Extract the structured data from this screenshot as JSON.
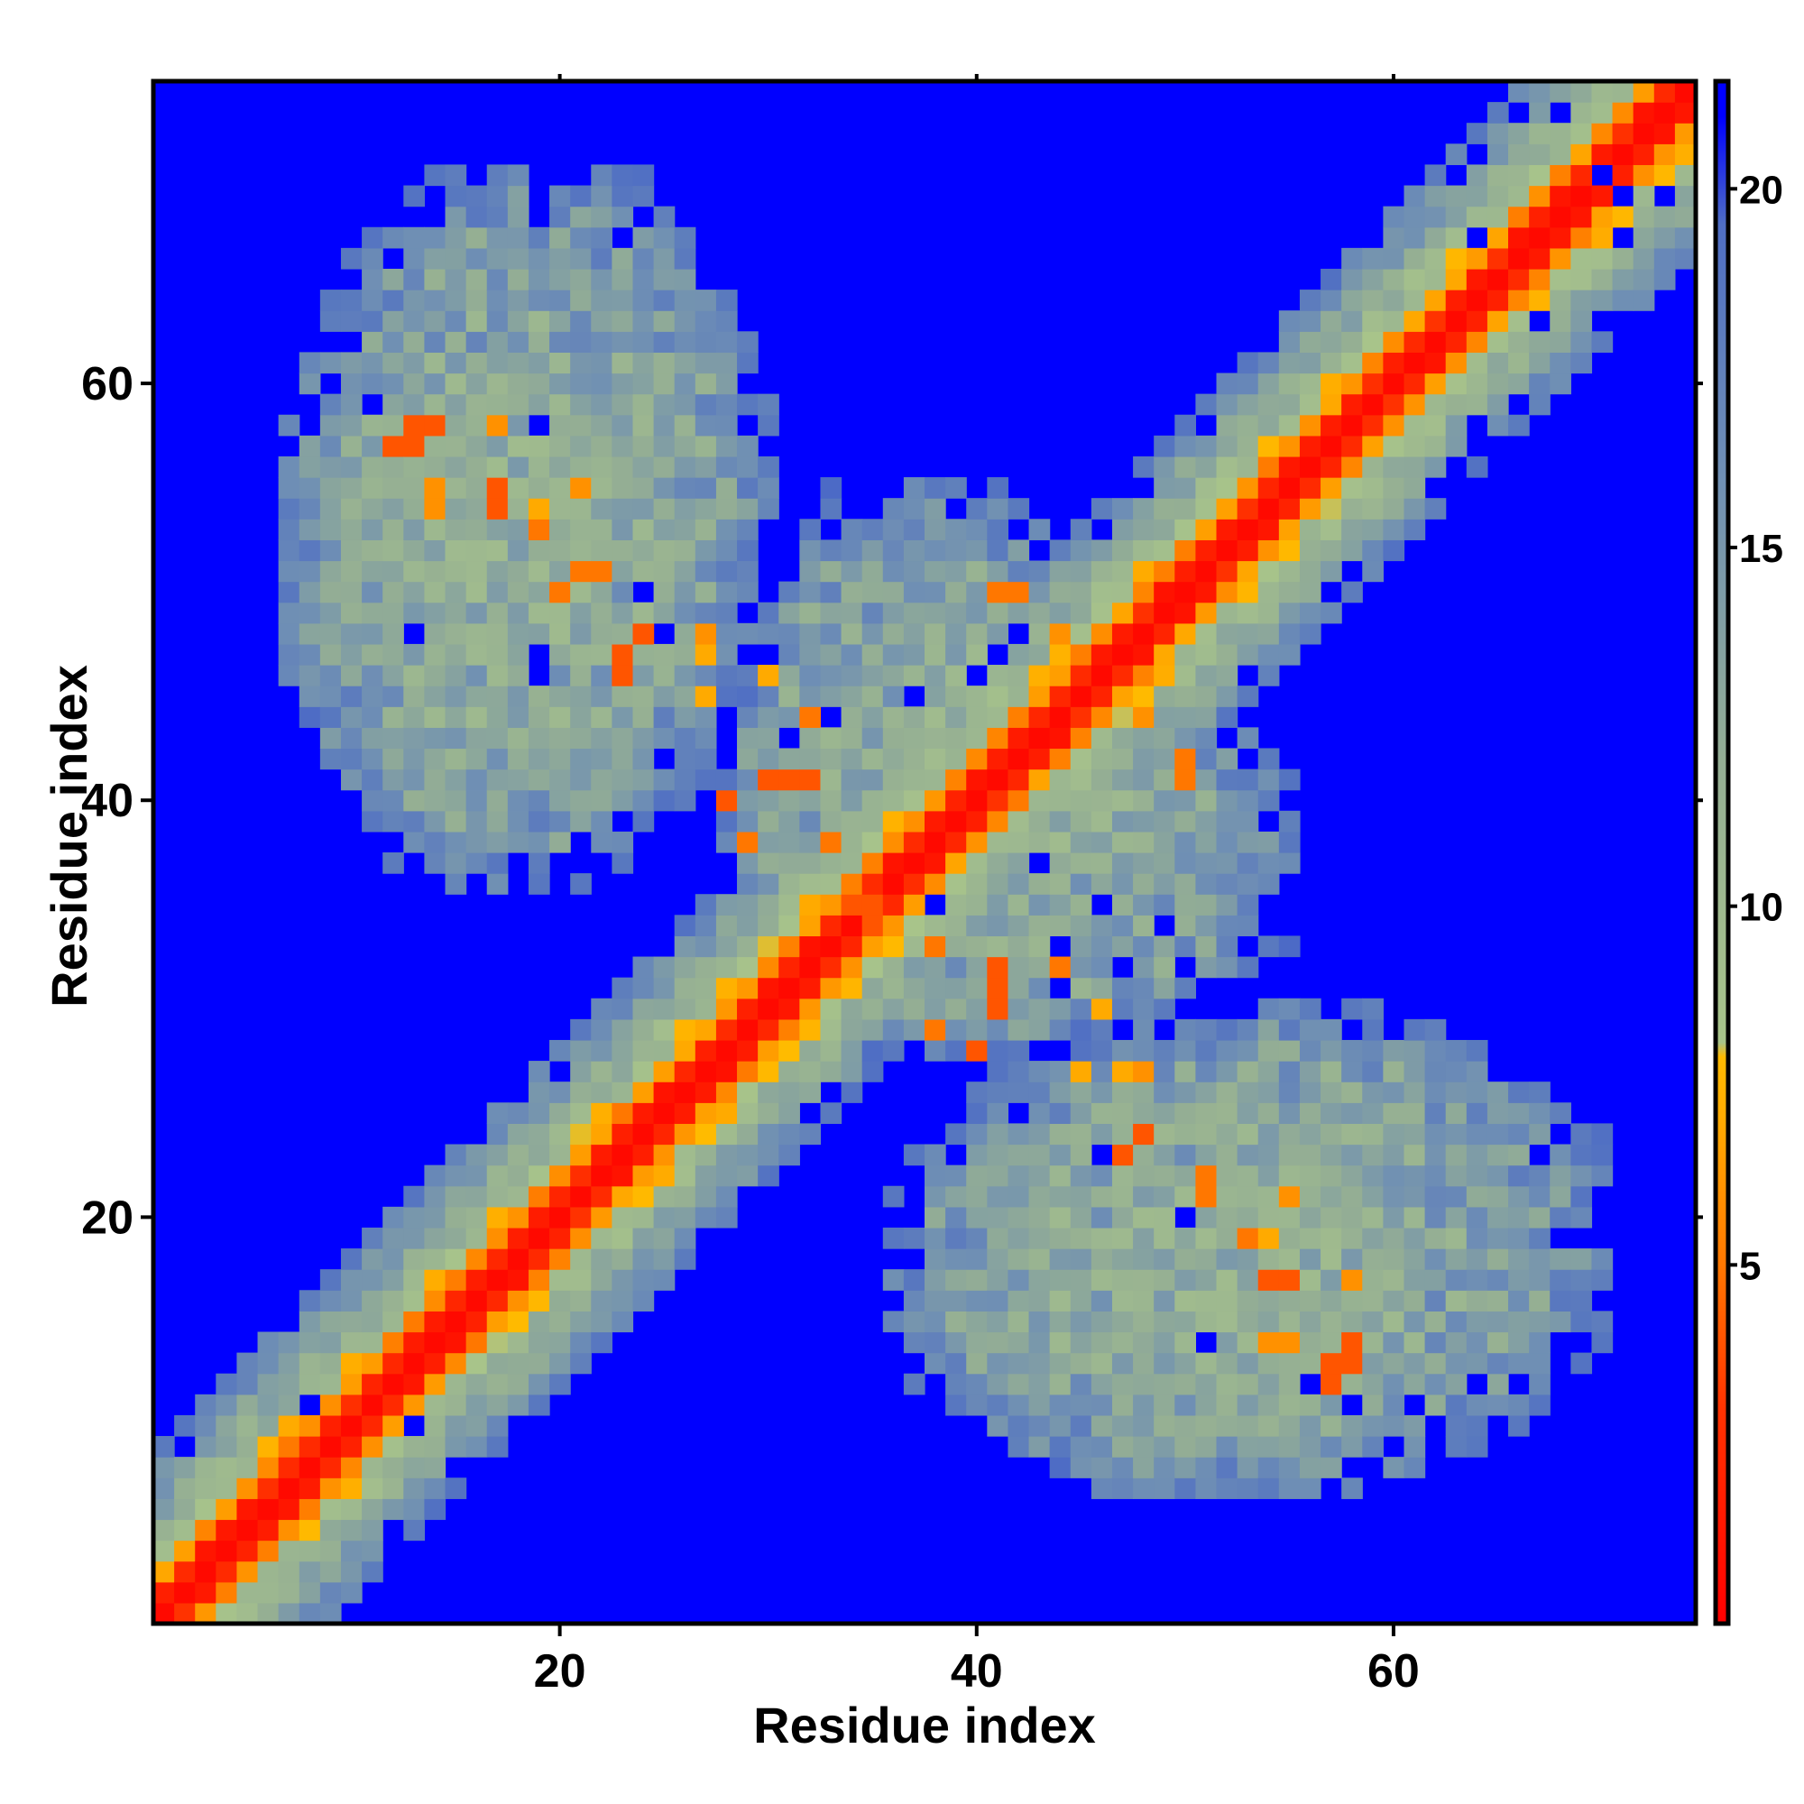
{
  "chart_data": {
    "type": "heatmap",
    "title": "",
    "xlabel": "Residue index",
    "ylabel": "Residue index",
    "n_residues": 74,
    "xlim": [
      0.5,
      74.5
    ],
    "ylim": [
      0.5,
      74.5
    ],
    "x_ticks": [
      20,
      40,
      60
    ],
    "y_ticks": [
      20,
      40,
      60
    ],
    "colorbar": {
      "range": [
        0,
        21.5
      ],
      "ticks": [
        5,
        10,
        15,
        20
      ],
      "stops": [
        {
          "value": 0,
          "color": "#ff0000"
        },
        {
          "value": 3,
          "color": "#ff3300"
        },
        {
          "value": 5,
          "color": "#ff7700"
        },
        {
          "value": 7,
          "color": "#ffaa00"
        },
        {
          "value": 7.9,
          "color": "#ffbb00"
        },
        {
          "value": 8.1,
          "color": "#a8c48a"
        },
        {
          "value": 12,
          "color": "#94ae94"
        },
        {
          "value": 16,
          "color": "#6f8fb4"
        },
        {
          "value": 19.5,
          "color": "#4f6ec4"
        },
        {
          "value": 21,
          "color": "#0000ff"
        }
      ]
    },
    "background_color": "#0000ff",
    "structure": {
      "diagonal_width_residues": 1,
      "near_diagonal_bands": [
        {
          "offset": 1,
          "value": 2
        },
        {
          "offset": 2,
          "value": 6
        },
        {
          "offset": 3,
          "value": 9
        },
        {
          "offset": 4,
          "value": 11
        },
        {
          "offset": 5,
          "value": 12.5
        },
        {
          "offset": 6,
          "value": 14
        },
        {
          "offset": 7,
          "value": 16
        },
        {
          "offset": 8,
          "value": 18
        }
      ],
      "antidiagonal_center": 29,
      "contact_lobes": [
        {
          "i_range": [
            7,
            28
          ],
          "j_range": [
            36,
            63
          ],
          "typical_value": 13
        },
        {
          "i_range": [
            28,
            48
          ],
          "j_range": [
            28,
            55
          ],
          "typical_value": 13
        },
        {
          "i_range": [
            38,
            70
          ],
          "j_range": [
            7,
            30
          ],
          "typical_value": 13
        }
      ],
      "contact_hotspots": [
        {
          "i": 13,
          "j": 58,
          "value": 4
        },
        {
          "i": 14,
          "j": 58,
          "value": 4
        },
        {
          "i": 17,
          "j": 58,
          "value": 6
        },
        {
          "i": 14,
          "j": 55,
          "value": 6
        },
        {
          "i": 17,
          "j": 55,
          "value": 5
        },
        {
          "i": 19,
          "j": 54,
          "value": 7
        },
        {
          "i": 21,
          "j": 55,
          "value": 6
        },
        {
          "i": 21,
          "j": 51,
          "value": 5
        },
        {
          "i": 22,
          "j": 51,
          "value": 5
        },
        {
          "i": 24,
          "j": 48,
          "value": 4
        },
        {
          "i": 27,
          "j": 48,
          "value": 6
        },
        {
          "i": 30,
          "j": 46,
          "value": 7
        },
        {
          "i": 32,
          "j": 44,
          "value": 5
        },
        {
          "i": 31,
          "j": 41,
          "value": 4
        },
        {
          "i": 32,
          "j": 41,
          "value": 4
        },
        {
          "i": 33,
          "j": 38,
          "value": 5
        },
        {
          "i": 34,
          "j": 35,
          "value": 4
        },
        {
          "i": 35,
          "j": 35,
          "value": 4
        },
        {
          "i": 38,
          "j": 29,
          "value": 5
        },
        {
          "i": 40,
          "j": 28,
          "value": 4
        },
        {
          "i": 41,
          "j": 30,
          "value": 4
        },
        {
          "i": 45,
          "j": 27,
          "value": 7
        },
        {
          "i": 47,
          "j": 27,
          "value": 7
        },
        {
          "i": 46,
          "j": 23,
          "value": 4
        },
        {
          "i": 47,
          "j": 23,
          "value": 4
        },
        {
          "i": 50,
          "j": 20,
          "value": 5
        },
        {
          "i": 53,
          "j": 19,
          "value": 5
        },
        {
          "i": 54,
          "j": 17,
          "value": 4
        },
        {
          "i": 55,
          "j": 17,
          "value": 4
        },
        {
          "i": 57,
          "j": 13,
          "value": 4
        },
        {
          "i": 57,
          "j": 12,
          "value": 4
        },
        {
          "i": 54,
          "j": 14,
          "value": 6
        },
        {
          "i": 42,
          "j": 50,
          "value": 5
        },
        {
          "i": 48,
          "j": 44,
          "value": 6
        },
        {
          "i": 50,
          "j": 41,
          "value": 5
        }
      ],
      "blue_gaps_in_bands": [
        [
          66,
          73
        ],
        [
          68,
          73
        ],
        [
          70,
          70
        ],
        [
          71,
          69
        ],
        [
          73,
          69
        ],
        [
          71,
          67
        ],
        [
          57,
          69
        ],
        [
          59,
          67
        ],
        [
          64,
          67
        ],
        [
          70,
          63
        ],
        [
          72,
          62
        ],
        [
          67,
          63
        ],
        [
          66,
          59
        ],
        [
          64,
          58
        ],
        [
          66,
          56
        ],
        [
          8,
          11
        ],
        [
          13,
          10
        ],
        [
          12,
          71
        ],
        [
          11,
          59
        ],
        [
          19,
          58
        ],
        [
          24,
          50
        ],
        [
          25,
          48
        ],
        [
          30,
          47
        ],
        [
          31,
          43
        ],
        [
          33,
          44
        ],
        [
          37,
          45
        ],
        [
          40,
          46
        ],
        [
          38,
          35
        ],
        [
          43,
          37
        ],
        [
          46,
          35
        ],
        [
          44,
          31
        ],
        [
          44,
          33
        ],
        [
          47,
          32
        ],
        [
          50,
          32
        ],
        [
          49,
          34
        ],
        [
          39,
          23
        ],
        [
          46,
          23
        ],
        [
          50,
          20
        ],
        [
          51,
          14
        ],
        [
          56,
          12
        ],
        [
          61,
          11
        ],
        [
          62,
          10
        ],
        [
          64,
          12
        ],
        [
          58,
          11
        ],
        [
          42,
          48
        ],
        [
          41,
          47
        ],
        [
          19,
          46
        ],
        [
          19,
          47
        ],
        [
          13,
          48
        ],
        [
          21,
          38
        ],
        [
          28,
          42
        ]
      ]
    }
  }
}
